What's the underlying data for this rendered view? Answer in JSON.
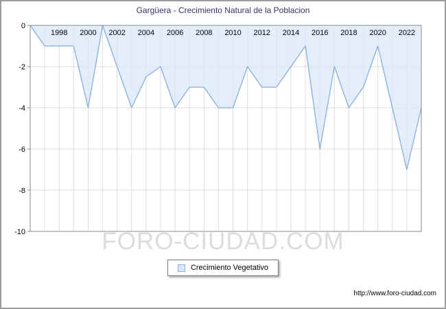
{
  "window": {
    "title": "Gargüera - Crecimiento Natural de la Poblacion"
  },
  "chart_data": {
    "type": "area",
    "title": "Gargüera - Crecimiento Natural de la Poblacion",
    "x": [
      1996,
      1997,
      1998,
      1999,
      2000,
      2001,
      2002,
      2003,
      2004,
      2005,
      2006,
      2007,
      2008,
      2009,
      2010,
      2011,
      2012,
      2013,
      2014,
      2015,
      2016,
      2017,
      2018,
      2019,
      2020,
      2021,
      2022,
      2023
    ],
    "series": [
      {
        "name": "Crecimiento Vegetativo",
        "values": [
          0,
          -1,
          -1,
          -1,
          -4,
          0,
          -2,
          -4,
          -2.5,
          -2,
          -4,
          -3,
          -3,
          -4,
          -4,
          -2,
          -3,
          -3,
          -2,
          -1,
          -6,
          -2,
          -4,
          -3,
          -1,
          -4,
          -7,
          -4
        ]
      }
    ],
    "ylim": [
      -10,
      0
    ],
    "yticks": [
      0,
      -2,
      -4,
      -6,
      -8,
      -10
    ],
    "xtick_labels": [
      "1998",
      "2000",
      "2002",
      "2004",
      "2006",
      "2008",
      "2010",
      "2012",
      "2014",
      "2016",
      "2018",
      "2020",
      "2022"
    ],
    "grid": true,
    "legend_position": "bottom",
    "colors": {
      "line": "#85aede",
      "fill": "#d9e8f8",
      "grid": "#dcdcdc",
      "axis_border": "#8a8a8a",
      "tick_text": "#000000",
      "title_text": "#333366"
    }
  },
  "legend": {
    "label": "Crecimiento Vegetativo"
  },
  "watermark": "FORO-CIUDAD.COM",
  "footer": {
    "url": "http://www.foro-ciudad.com"
  }
}
